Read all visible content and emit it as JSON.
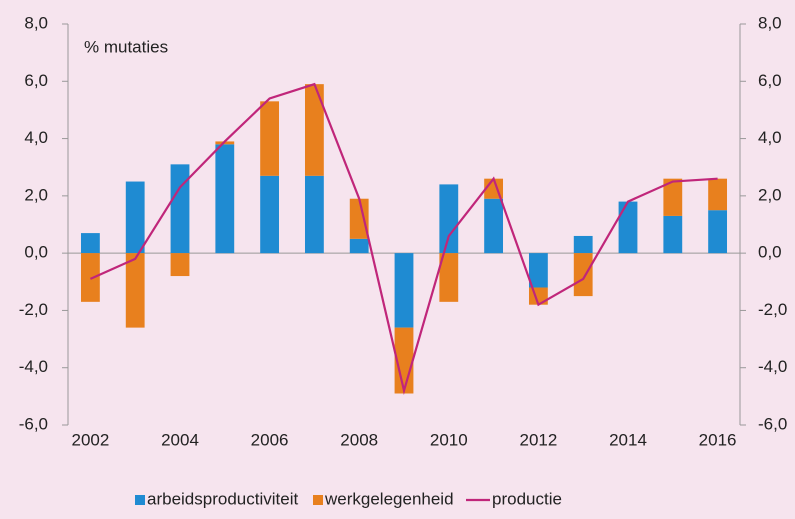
{
  "chart_data": {
    "type": "bar",
    "annotation": "% mutaties",
    "categories": [
      "2002",
      null,
      "2004",
      null,
      "2006",
      null,
      "2008",
      null,
      "2010",
      null,
      "2012",
      null,
      "2014",
      null,
      "2016"
    ],
    "stacked": true,
    "series": [
      {
        "name": "arbeidsproductiviteit",
        "type": "bar",
        "color": "#1f8bd2",
        "values": [
          0.7,
          2.5,
          3.1,
          3.8,
          2.7,
          2.7,
          0.5,
          -2.6,
          2.4,
          1.9,
          -1.2,
          0.6,
          1.8,
          1.3,
          1.5
        ]
      },
      {
        "name": "werkgelegenheid",
        "type": "bar",
        "color": "#e8801e",
        "values": [
          -1.7,
          -2.6,
          -0.8,
          0.1,
          2.6,
          3.2,
          1.4,
          -2.3,
          -1.7,
          0.7,
          -0.6,
          -1.5,
          0.0,
          1.3,
          1.1
        ]
      },
      {
        "name": "productie",
        "type": "line",
        "color": "#c0267a",
        "values": [
          -0.9,
          -0.2,
          2.3,
          3.9,
          5.4,
          5.9,
          1.9,
          -4.8,
          0.6,
          2.6,
          -1.8,
          -0.9,
          1.8,
          2.5,
          2.6
        ]
      }
    ],
    "ylim": [
      -6,
      8
    ],
    "yticks": [
      {
        "value": -6,
        "label": "-6,0"
      },
      {
        "value": -4,
        "label": "-4,0"
      },
      {
        "value": -2,
        "label": "-2,0"
      },
      {
        "value": 0,
        "label": "0,0"
      },
      {
        "value": 2,
        "label": "2,0"
      },
      {
        "value": 4,
        "label": "4,0"
      },
      {
        "value": 6,
        "label": "6,0"
      },
      {
        "value": 8,
        "label": "8,0"
      }
    ],
    "y2lim": [
      -6,
      8
    ],
    "y2ticks": [
      {
        "value": -6,
        "label": "-6,0"
      },
      {
        "value": -4,
        "label": "-4,0"
      },
      {
        "value": -2,
        "label": "-2,0"
      },
      {
        "value": 0,
        "label": "0,0"
      },
      {
        "value": 2,
        "label": "2,0"
      },
      {
        "value": 4,
        "label": "4,0"
      },
      {
        "value": 6,
        "label": "6,0"
      },
      {
        "value": 8,
        "label": "8,0"
      }
    ],
    "grid": false,
    "legend": "bottom"
  }
}
